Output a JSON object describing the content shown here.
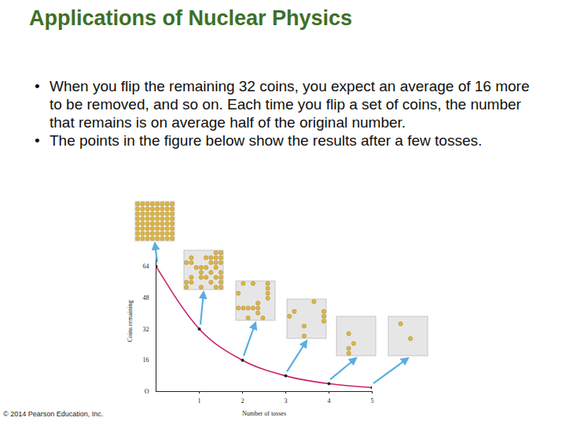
{
  "slide": {
    "title": "Applications of Nuclear Physics",
    "bullets": [
      "When you flip the remaining 32 coins, you expect an average of 16 more to be removed, and so on. Each time you flip a set of coins, the number that remains is on average half of the original number.",
      "The points in the figure below show the results after a few tosses."
    ],
    "copyright": "© 2014 Pearson Education, Inc."
  },
  "chart_data": {
    "type": "line",
    "x": [
      0,
      1,
      2,
      3,
      4,
      5
    ],
    "values": [
      64,
      32,
      16,
      8,
      4,
      2
    ],
    "color": "#c8236a",
    "marker": "circle",
    "xlabel": "Number of tosses",
    "ylabel": "Coins remaining",
    "xlim": [
      0,
      5
    ],
    "ylim": [
      0,
      72
    ],
    "xticks": [
      1,
      2,
      3,
      4,
      5
    ],
    "yticks": [
      {
        "value": 0,
        "label": "O"
      },
      16,
      32,
      48,
      64
    ]
  }
}
